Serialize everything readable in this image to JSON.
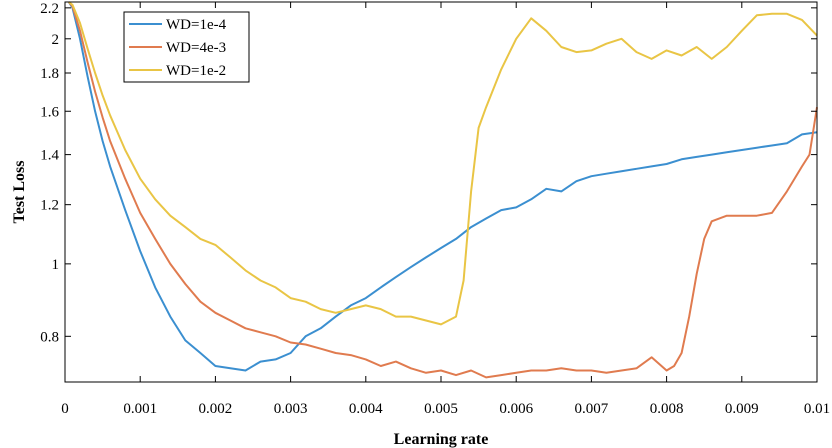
{
  "chart_data": {
    "type": "line",
    "title": "",
    "xlabel": "Learning rate",
    "ylabel": "Test Loss",
    "xlim": [
      0,
      0.01
    ],
    "ylim": [
      0.695,
      2.24
    ],
    "y_scale": "log",
    "grid": false,
    "legend_position": "top-left",
    "x_ticks": [
      0,
      0.001,
      0.002,
      0.003,
      0.004,
      0.005,
      0.006,
      0.007,
      0.008,
      0.009,
      0.01
    ],
    "x_tick_labels": [
      "0",
      "0.001",
      "0.002",
      "0.003",
      "0.004",
      "0.005",
      "0.006",
      "0.007",
      "0.008",
      "0.009",
      "0.01"
    ],
    "y_ticks": [
      0.8,
      1,
      1.2,
      1.4,
      1.6,
      1.8,
      2,
      2.2
    ],
    "y_tick_labels": [
      "0.8",
      "1",
      "1.2",
      "1.4",
      "1.6",
      "1.8",
      "2",
      "2.2"
    ],
    "series": [
      {
        "name": "WD=1e-4",
        "color": "#3b8fd0",
        "x": [
          5e-05,
          0.0001,
          0.0002,
          0.0003,
          0.0004,
          0.0005,
          0.0006,
          0.0008,
          0.001,
          0.0012,
          0.0014,
          0.0016,
          0.0018,
          0.002,
          0.0022,
          0.0024,
          0.0026,
          0.0028,
          0.003,
          0.0032,
          0.0034,
          0.0036,
          0.0038,
          0.004,
          0.0042,
          0.0044,
          0.0046,
          0.0048,
          0.005,
          0.0052,
          0.0054,
          0.0056,
          0.0058,
          0.006,
          0.0062,
          0.0064,
          0.0066,
          0.0068,
          0.007,
          0.0072,
          0.0074,
          0.0076,
          0.0078,
          0.008,
          0.0082,
          0.0084,
          0.0086,
          0.0088,
          0.009,
          0.0092,
          0.0094,
          0.0096,
          0.0098,
          0.01
        ],
        "values": [
          2.24,
          2.2,
          2.0,
          1.78,
          1.6,
          1.46,
          1.35,
          1.18,
          1.04,
          0.93,
          0.85,
          0.79,
          0.76,
          0.73,
          0.725,
          0.72,
          0.74,
          0.745,
          0.76,
          0.8,
          0.82,
          0.85,
          0.88,
          0.9,
          0.93,
          0.96,
          0.99,
          1.02,
          1.05,
          1.08,
          1.12,
          1.15,
          1.18,
          1.19,
          1.22,
          1.26,
          1.25,
          1.29,
          1.31,
          1.32,
          1.33,
          1.34,
          1.35,
          1.36,
          1.38,
          1.39,
          1.4,
          1.41,
          1.42,
          1.43,
          1.44,
          1.45,
          1.49,
          1.5
        ]
      },
      {
        "name": "WD=4e-3",
        "color": "#e07b4f",
        "x": [
          5e-05,
          0.0001,
          0.0002,
          0.0003,
          0.0004,
          0.0005,
          0.0006,
          0.0008,
          0.001,
          0.0012,
          0.0014,
          0.0016,
          0.0018,
          0.002,
          0.0022,
          0.0024,
          0.0026,
          0.0028,
          0.003,
          0.0032,
          0.0034,
          0.0036,
          0.0038,
          0.004,
          0.0042,
          0.0044,
          0.0046,
          0.0048,
          0.005,
          0.0052,
          0.0054,
          0.0056,
          0.0058,
          0.006,
          0.0062,
          0.0064,
          0.0066,
          0.0068,
          0.007,
          0.0072,
          0.0074,
          0.0076,
          0.0078,
          0.008,
          0.0081,
          0.0082,
          0.0083,
          0.0084,
          0.0085,
          0.0086,
          0.0088,
          0.009,
          0.0092,
          0.0094,
          0.0096,
          0.0098,
          0.0099,
          0.01
        ],
        "values": [
          2.24,
          2.21,
          2.05,
          1.86,
          1.7,
          1.57,
          1.46,
          1.3,
          1.17,
          1.08,
          1.0,
          0.94,
          0.89,
          0.86,
          0.84,
          0.82,
          0.81,
          0.8,
          0.785,
          0.78,
          0.77,
          0.76,
          0.755,
          0.745,
          0.73,
          0.74,
          0.725,
          0.715,
          0.72,
          0.71,
          0.72,
          0.705,
          0.71,
          0.715,
          0.72,
          0.72,
          0.725,
          0.72,
          0.72,
          0.715,
          0.72,
          0.725,
          0.75,
          0.72,
          0.73,
          0.76,
          0.85,
          0.97,
          1.08,
          1.14,
          1.16,
          1.16,
          1.16,
          1.17,
          1.25,
          1.35,
          1.4,
          1.62
        ]
      },
      {
        "name": "WD=1e-2",
        "color": "#e9c545",
        "x": [
          5e-05,
          0.0001,
          0.0002,
          0.0003,
          0.0004,
          0.0005,
          0.0006,
          0.0008,
          0.001,
          0.0012,
          0.0014,
          0.0016,
          0.0018,
          0.002,
          0.0022,
          0.0024,
          0.0026,
          0.0028,
          0.003,
          0.0032,
          0.0034,
          0.0036,
          0.0038,
          0.004,
          0.0042,
          0.0044,
          0.0046,
          0.0048,
          0.005,
          0.0051,
          0.0052,
          0.0053,
          0.0054,
          0.0055,
          0.0056,
          0.0058,
          0.006,
          0.0062,
          0.0064,
          0.0066,
          0.0068,
          0.007,
          0.0072,
          0.0074,
          0.0076,
          0.0078,
          0.008,
          0.0082,
          0.0084,
          0.0086,
          0.0088,
          0.009,
          0.0092,
          0.0094,
          0.0096,
          0.0098,
          0.01
        ],
        "values": [
          2.24,
          2.22,
          2.1,
          1.94,
          1.8,
          1.68,
          1.58,
          1.42,
          1.3,
          1.22,
          1.16,
          1.12,
          1.08,
          1.06,
          1.02,
          0.98,
          0.95,
          0.93,
          0.9,
          0.89,
          0.87,
          0.86,
          0.87,
          0.88,
          0.87,
          0.85,
          0.85,
          0.84,
          0.83,
          0.84,
          0.85,
          0.95,
          1.25,
          1.52,
          1.62,
          1.82,
          2.0,
          2.13,
          2.05,
          1.95,
          1.92,
          1.93,
          1.97,
          2.0,
          1.92,
          1.88,
          1.93,
          1.9,
          1.95,
          1.88,
          1.95,
          2.05,
          2.15,
          2.16,
          2.16,
          2.12,
          2.02
        ]
      }
    ]
  }
}
